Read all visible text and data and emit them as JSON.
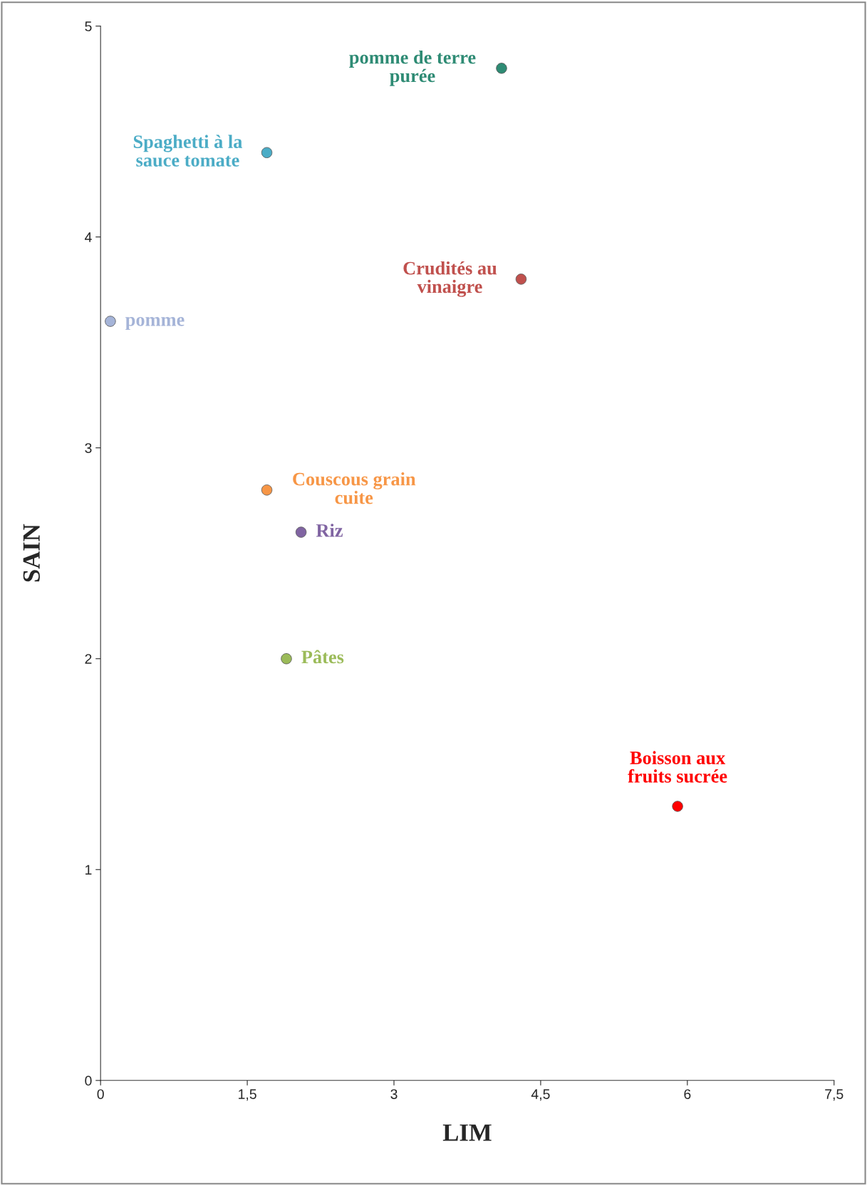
{
  "chart_data": {
    "type": "scatter",
    "xlabel": "LIM",
    "ylabel": "SAIN",
    "xlim": [
      0,
      7.5
    ],
    "ylim": [
      0,
      5
    ],
    "xticks": [
      0,
      {
        "value": 1.5,
        "label": "1,5"
      },
      3,
      {
        "value": 4.5,
        "label": "4,5"
      },
      6,
      {
        "value": 7.5,
        "label": "7,5"
      }
    ],
    "yticks": [
      0,
      1,
      2,
      3,
      4,
      5
    ],
    "grid": false,
    "legend": false,
    "marker": "circle",
    "series": [
      {
        "name": "pomme de terre\npurée",
        "color": "#2e8b74",
        "x": [
          4.1
        ],
        "values": [
          4.8
        ]
      },
      {
        "name": "Spaghetti à la\nsauce tomate",
        "color": "#4bacc6",
        "x": [
          1.7
        ],
        "values": [
          4.4
        ]
      },
      {
        "name": "Crudités au\nvinaigre",
        "color": "#c0504d",
        "x": [
          4.3
        ],
        "values": [
          3.8
        ]
      },
      {
        "name": "pomme",
        "color": "#a5b4d8",
        "x": [
          0.1
        ],
        "values": [
          3.6
        ]
      },
      {
        "name": "Couscous grain\ncuite",
        "color": "#f79646",
        "x": [
          1.7
        ],
        "values": [
          2.8
        ]
      },
      {
        "name": "Riz",
        "color": "#8064a2",
        "x": [
          2.05
        ],
        "values": [
          2.6
        ]
      },
      {
        "name": "Pâtes",
        "color": "#9bbb59",
        "x": [
          1.9
        ],
        "values": [
          2.0
        ]
      },
      {
        "name": "Boisson aux\nfruits sucrée",
        "color": "#ff0000",
        "x": [
          5.9
        ],
        "values": [
          1.3
        ]
      }
    ]
  }
}
